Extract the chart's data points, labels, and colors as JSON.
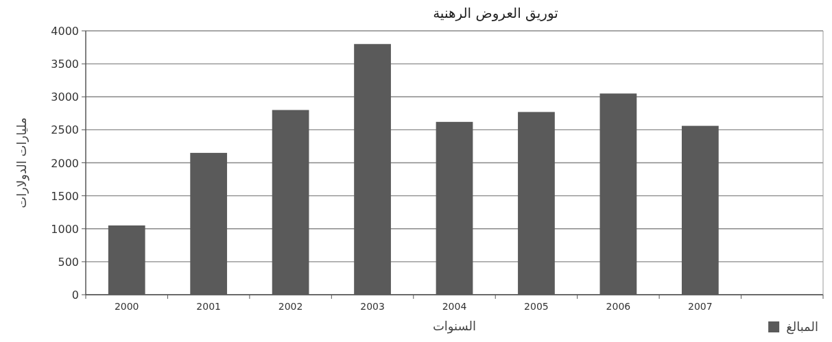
{
  "chart_data": {
    "type": "bar",
    "title": "توريق العروض الرهنية",
    "xlabel": "السنوات",
    "ylabel": "مليارات الدولارات",
    "categories": [
      "2000",
      "2001",
      "2002",
      "2003",
      "2004",
      "2005",
      "2006",
      "2007",
      null
    ],
    "series": [
      {
        "name": "المبالغ",
        "color": "#5a5a5a",
        "values": [
          1050,
          2150,
          2800,
          3800,
          2620,
          2770,
          3050,
          2560,
          null
        ]
      }
    ],
    "ylim": [
      0,
      4000
    ],
    "yticks": [
      0,
      500,
      1000,
      1500,
      2000,
      2500,
      3000,
      3500,
      4000
    ],
    "grid": "y",
    "legend": "bottom right"
  }
}
